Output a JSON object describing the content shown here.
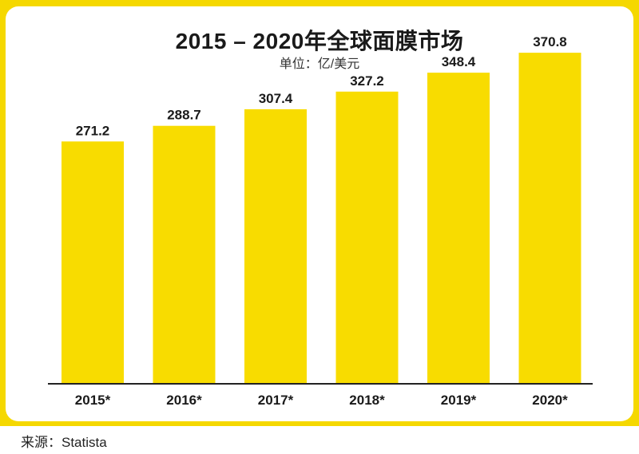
{
  "title": "2015 – 2020年全球面膜市场",
  "subtitle": "单位：亿/美元",
  "source": "来源：Statista",
  "colors": {
    "bar": "#f8dc00",
    "frame": "#f5d800",
    "axis": "#222222",
    "text": "#1a1a1a"
  },
  "chart_data": {
    "type": "bar",
    "title": "2015 – 2020年全球面膜市场",
    "ylabel": "单位：亿/美元",
    "xlabel": "",
    "categories": [
      "2015*",
      "2016*",
      "2017*",
      "2018*",
      "2019*",
      "2020*"
    ],
    "values": [
      271.2,
      288.7,
      307.4,
      327.2,
      348.4,
      370.8
    ],
    "value_labels": [
      "271.2",
      "288.7",
      "307.4",
      "327.2",
      "348.4",
      "370.8"
    ],
    "ylim": [
      0,
      430
    ],
    "grid": false,
    "legend": "none"
  }
}
